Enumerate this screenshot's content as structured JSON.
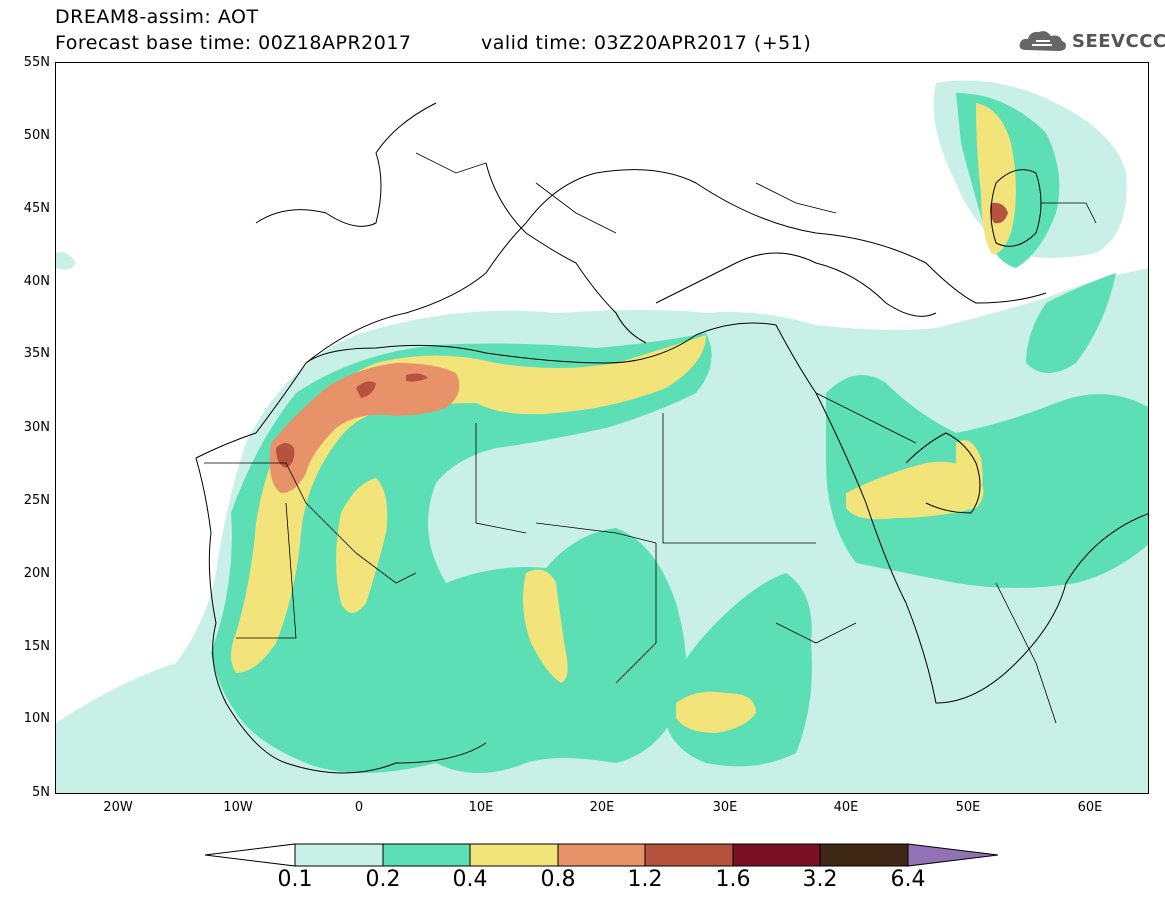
{
  "header": {
    "line1": "DREAM8-assim: AOT",
    "line2_left": "Forecast base time: 00Z18APR2017",
    "line2_right": "valid time: 03Z20APR2017 (+51)"
  },
  "logo": {
    "text": "SEEVCCC",
    "icon": "cloud-icon"
  },
  "map": {
    "lat_labels": [
      "55N",
      "50N",
      "45N",
      "40N",
      "35N",
      "30N",
      "25N",
      "20N",
      "15N",
      "10N",
      "5N"
    ],
    "lon_labels": [
      "20W",
      "10W",
      "0",
      "10E",
      "20E",
      "30E",
      "40E",
      "50E",
      "60E"
    ],
    "colors": {
      "c01": "#c8f0e6",
      "c02": "#5ddfb5",
      "c04": "#f2e37a",
      "c08": "#e8926a",
      "c12": "#b5533f",
      "c16": "#7a0f26",
      "c32": "#3e2715",
      "c64": "#9172b3"
    }
  },
  "colorbar": {
    "labels": [
      "0.1",
      "0.2",
      "0.4",
      "0.8",
      "1.2",
      "1.6",
      "3.2",
      "6.4"
    ],
    "colors": [
      "#ffffff",
      "#c8f0e6",
      "#5ddfb5",
      "#f2e37a",
      "#e8926a",
      "#b5533f",
      "#7a0f26",
      "#3e2715",
      "#9172b3"
    ]
  }
}
